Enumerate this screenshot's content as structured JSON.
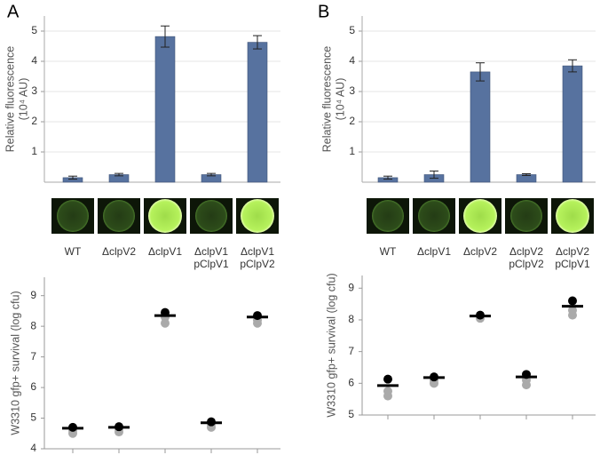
{
  "chart_data": [
    {
      "type": "bar",
      "panel": "A",
      "y_label": [
        "Relative fluorescence",
        "(10⁴ AU)"
      ],
      "categories": [
        "WT",
        "ΔclpV2",
        "ΔclpV1",
        "ΔclpV1 pClpV1",
        "ΔclpV1 pClpV2"
      ],
      "values": [
        0.15,
        0.25,
        4.82,
        0.25,
        4.63
      ],
      "errors": [
        0.05,
        0.04,
        0.35,
        0.04,
        0.22
      ],
      "color": "#57729f",
      "ylim": [
        0,
        5.5
      ],
      "yticks": [
        1,
        2,
        3,
        4,
        5
      ],
      "grid": true
    },
    {
      "type": "dot",
      "y_label": "W3310 gfp+ survival (log cfu)",
      "values": [
        4.67,
        4.7,
        8.35,
        4.85,
        8.3
      ],
      "replicates": [
        [
          4.7,
          4.6,
          4.5
        ],
        [
          4.72,
          4.65,
          4.55
        ],
        [
          8.45,
          8.3,
          8.1
        ],
        [
          4.88,
          4.8,
          4.7
        ],
        [
          8.35,
          8.2,
          8.1
        ]
      ],
      "replicate_colors": [
        "#000000",
        "#aaaaaa",
        "#aaaaaa"
      ],
      "ylim": [
        4,
        9.6
      ],
      "yticks": [
        4,
        5,
        6,
        7,
        8,
        9
      ],
      "grid": false
    },
    {
      "type": "bar",
      "panel": "B",
      "y_label": [
        "Relative fluorescence",
        "(10⁴ AU)"
      ],
      "categories": [
        "WT",
        "ΔclpV1",
        "ΔclpV2",
        "ΔclpV2 pClpV2",
        "ΔclpV2 pClpV1"
      ],
      "values": [
        0.15,
        0.25,
        3.65,
        0.25,
        3.85
      ],
      "errors": [
        0.05,
        0.12,
        0.3,
        0.03,
        0.2
      ],
      "color": "#57729f",
      "ylim": [
        0,
        5.5
      ],
      "yticks": [
        1,
        2,
        3,
        4,
        5
      ],
      "grid": true
    },
    {
      "type": "dot",
      "y_label": "W3310 gfp+ survival (log cfu)",
      "values": [
        5.93,
        6.18,
        8.12,
        6.2,
        8.43
      ],
      "replicates": [
        [
          6.13,
          5.75,
          5.6
        ],
        [
          6.2,
          6.1,
          6.0
        ],
        [
          8.15,
          8.1,
          8.05
        ],
        [
          6.28,
          6.1,
          5.95
        ],
        [
          8.6,
          8.3,
          8.15
        ]
      ],
      "replicate_colors": [
        "#000000",
        "#aaaaaa",
        "#aaaaaa"
      ],
      "ylim": [
        5,
        9.4
      ],
      "yticks": [
        5,
        6,
        7,
        8,
        9
      ],
      "grid": false
    }
  ]
}
